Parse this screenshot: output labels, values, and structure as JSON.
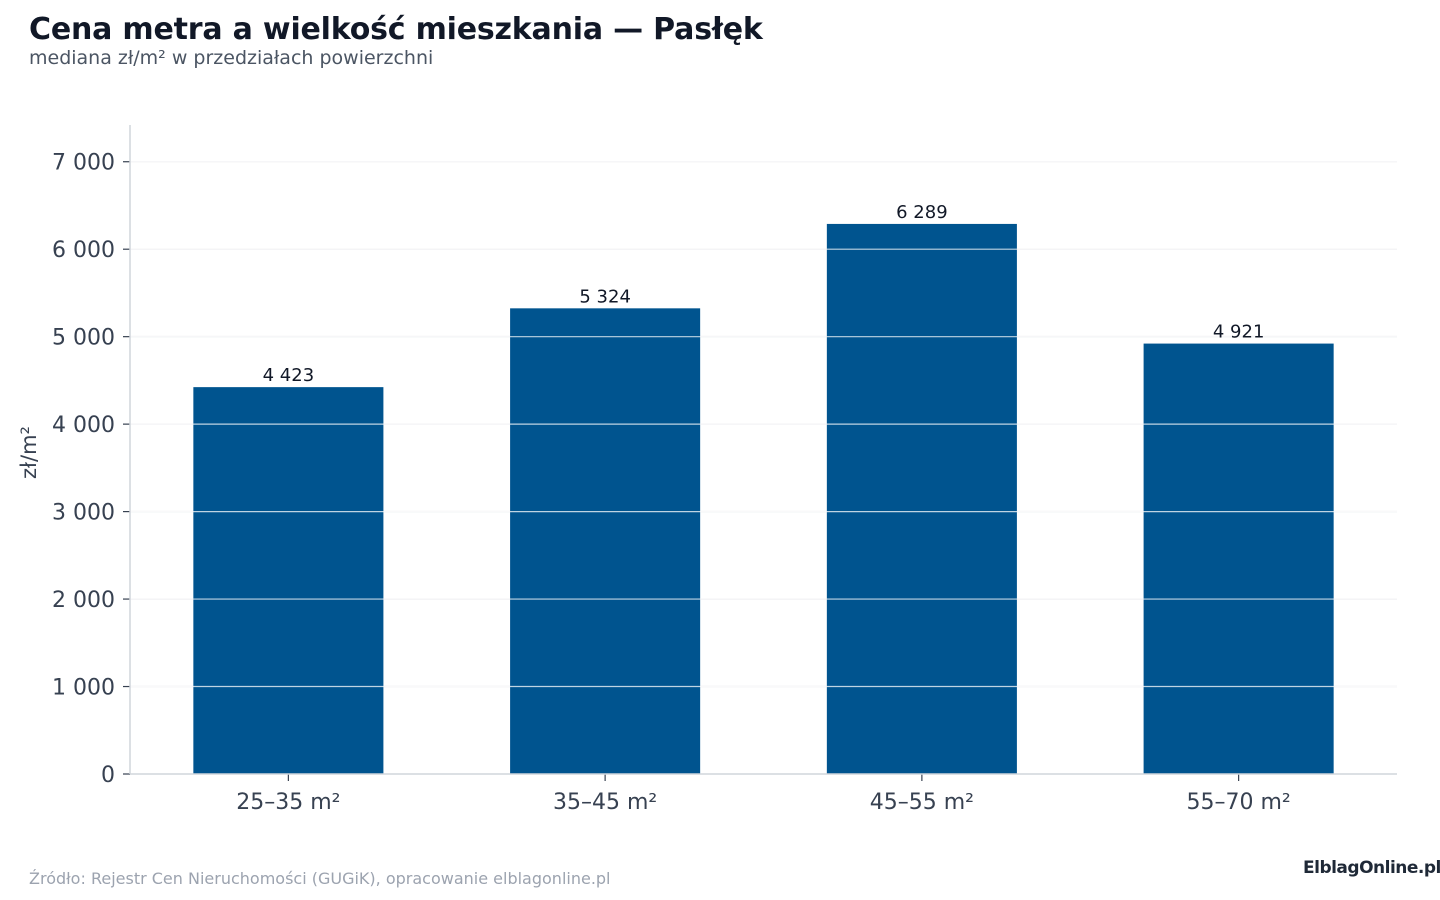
{
  "title": "Cena metra a wielkość mieszkania — Pasłęk",
  "subtitle": "mediana zł/m² w przedziałach powierzchni",
  "source": "Źródło: Rejestr Cen Nieruchomości (GUGiK), opracowanie elblagonline.pl",
  "logo_text": "ElblagOnline.pl",
  "chart_data": {
    "type": "bar",
    "categories": [
      "25–35 m²",
      "35–45 m²",
      "45–55 m²",
      "55–70 m²"
    ],
    "values": [
      4423,
      5324,
      6289,
      4921
    ],
    "value_labels": [
      "4 423",
      "5 324",
      "6 289",
      "4 921"
    ],
    "ylabel": "zł/m²",
    "ylim": [
      0,
      7420
    ],
    "yticks": [
      0,
      1000,
      2000,
      3000,
      4000,
      5000,
      6000,
      7000
    ],
    "ytick_labels": [
      "0",
      "1 000",
      "2 000",
      "3 000",
      "4 000",
      "5 000",
      "6 000",
      "7 000"
    ],
    "grid": true,
    "bar_color": "#00548f",
    "grid_color": "#e5e7eb",
    "axis_color": "#d1d5db"
  }
}
